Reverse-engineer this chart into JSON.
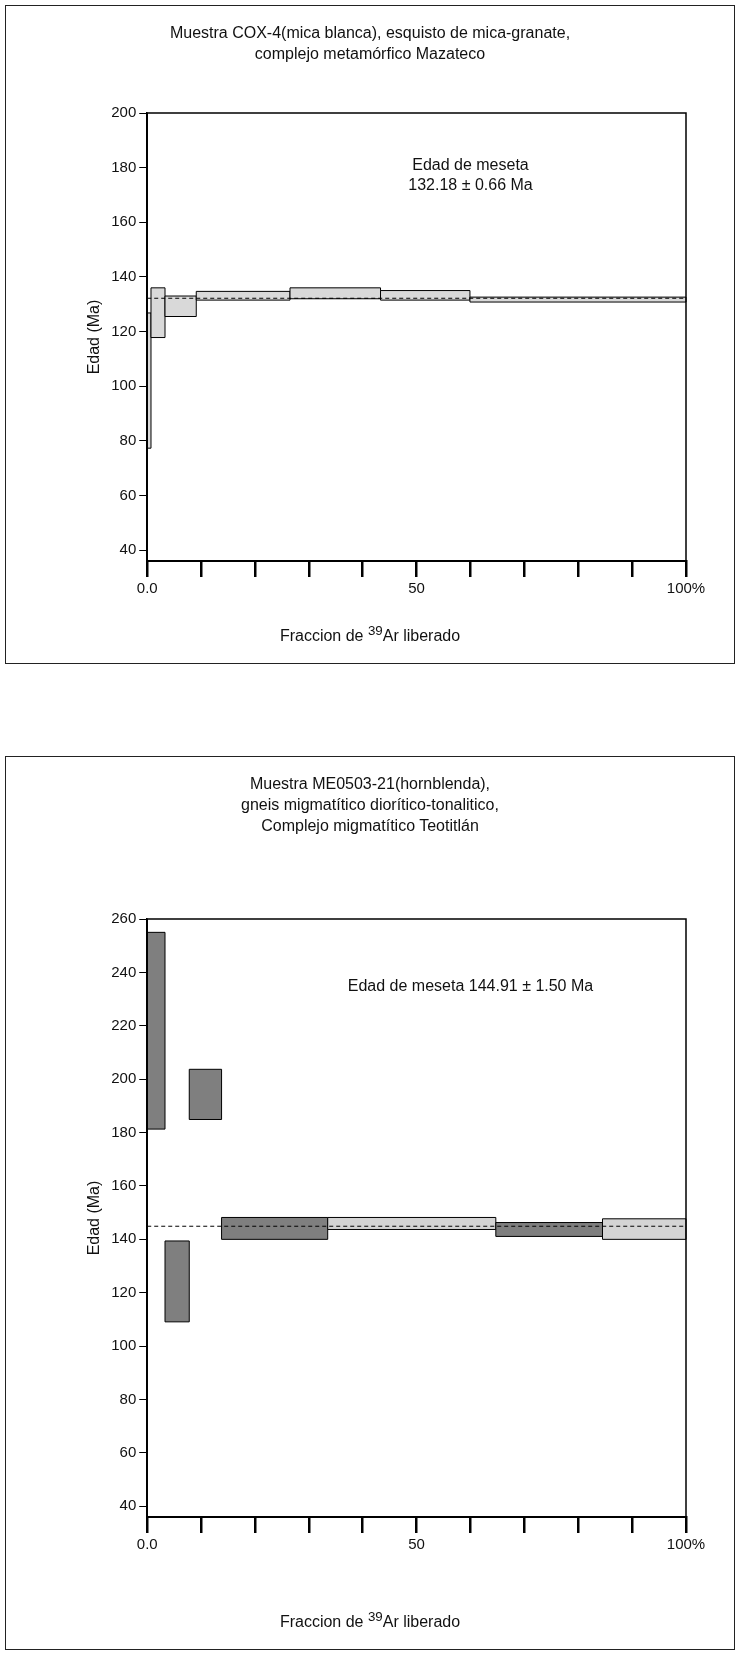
{
  "chart_data": [
    {
      "type": "histogram",
      "title": "Muestra COX-4(mica blanca), esquisto de mica-granate,\ncomplejo metamórfico Mazateco",
      "xlabel": "Fraccion de $^{39}$Ar liberado",
      "ylabel": "Edad (Ma)",
      "bins": [
        0,
        0.7,
        3.3,
        9.1,
        26.5,
        43.3,
        59.9,
        100
      ],
      "base": [
        77.3,
        117.8,
        125.5,
        131.5,
        132,
        131.5,
        130.8
      ],
      "values": [
        49.5,
        18.2,
        7.5,
        3.2,
        4,
        3.5,
        1.8
      ],
      "colors": [
        "#d9d9d9",
        "#d9d9d9",
        "#d9d9d9",
        "#d9d9d9",
        "#d9d9d9",
        "#d9d9d9",
        "#d9d9d9"
      ],
      "xlim": [
        0,
        100
      ],
      "xticks": [
        {
          "value": 0,
          "label": "0.0"
        },
        {
          "value": 10,
          "label": null
        },
        {
          "value": 20,
          "label": null
        },
        {
          "value": 30,
          "label": null
        },
        {
          "value": 40,
          "label": null
        },
        50,
        {
          "value": 60,
          "label": null
        },
        {
          "value": 70,
          "label": null
        },
        {
          "value": 80,
          "label": null
        },
        {
          "value": 90,
          "label": null
        },
        {
          "value": 100,
          "label": "100%"
        }
      ],
      "ylim": [
        36,
        200
      ],
      "yticks": [
        40,
        60,
        80,
        100,
        120,
        140,
        160,
        180,
        200
      ],
      "ref_lines": [
        {
          "axis": "y",
          "value": 132.18,
          "color": "#000000",
          "line_style": "dashed"
        }
      ],
      "annotations": [
        "Edad de meseta\n132.18 ± 0.66 Ma"
      ]
    },
    {
      "type": "histogram",
      "title": "Muestra ME0503-21(hornblenda),\ngneis migmatítico diorítico-tonalitico,\nComplejo migmatítico Teotitlán",
      "xlabel": "Fraccion de $^{39}$Ar liberado",
      "ylabel": "Edad (Ma)",
      "bins": [
        0,
        3.3,
        7.8,
        13.8,
        33.5,
        64.7,
        84.5,
        100
      ],
      "base": [
        181.3,
        109.1,
        184.9,
        140,
        143.7,
        141.1,
        140
      ],
      "values": [
        73.7,
        30.3,
        18.8,
        8.2,
        4.5,
        5.2,
        7.7
      ],
      "colors": [
        "#7f7f7f",
        "#7f7f7f",
        "#7f7f7f",
        "#7f7f7f",
        "#d4d4d4",
        "#7f7f7f",
        "#d4d4d4"
      ],
      "xlim": [
        0,
        100
      ],
      "xticks": [
        {
          "value": 0,
          "label": "0.0"
        },
        {
          "value": 10,
          "label": null
        },
        {
          "value": 20,
          "label": null
        },
        {
          "value": 30,
          "label": null
        },
        {
          "value": 40,
          "label": null
        },
        50,
        {
          "value": 60,
          "label": null
        },
        {
          "value": 70,
          "label": null
        },
        {
          "value": 80,
          "label": null
        },
        {
          "value": 90,
          "label": null
        },
        {
          "value": 100,
          "label": "100%"
        }
      ],
      "ylim": [
        36,
        260
      ],
      "yticks": [
        40,
        60,
        80,
        100,
        120,
        140,
        160,
        180,
        200,
        220,
        240,
        260
      ],
      "ref_lines": [
        {
          "axis": "y",
          "value": 144.91,
          "color": "#000000",
          "line_style": "dashed"
        }
      ],
      "annotations": [
        "Edad de meseta 144.91 ± 1.50 Ma"
      ]
    }
  ]
}
